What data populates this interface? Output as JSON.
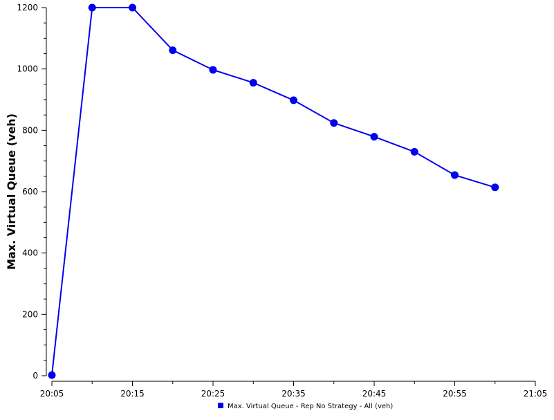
{
  "chart_data": {
    "type": "line",
    "xlabel": "",
    "ylabel": "Max. Virtual Queue (veh)",
    "x": [
      "20:05",
      "20:10",
      "20:15",
      "20:20",
      "20:25",
      "20:30",
      "20:35",
      "20:40",
      "20:45",
      "20:50",
      "20:55",
      "21:00"
    ],
    "x_minutes": [
      0,
      5,
      10,
      15,
      20,
      25,
      30,
      35,
      40,
      45,
      50,
      55
    ],
    "xlim_minutes": [
      0,
      60
    ],
    "x_tick_labels": [
      "20:05",
      "20:15",
      "20:25",
      "20:35",
      "20:45",
      "20:55",
      "21:05"
    ],
    "ylim": [
      0,
      1200
    ],
    "y_ticks": [
      0,
      200,
      400,
      600,
      800,
      1000,
      1200
    ],
    "grid": false,
    "legend_position": "bottom",
    "series": [
      {
        "name": "Max. Virtual Queue - Rep No Strategy - All (veh)",
        "color": "#0000EE",
        "values": [
          2,
          1200,
          1200,
          1061,
          997,
          955,
          898,
          824,
          779,
          730,
          654,
          614
        ]
      }
    ]
  }
}
